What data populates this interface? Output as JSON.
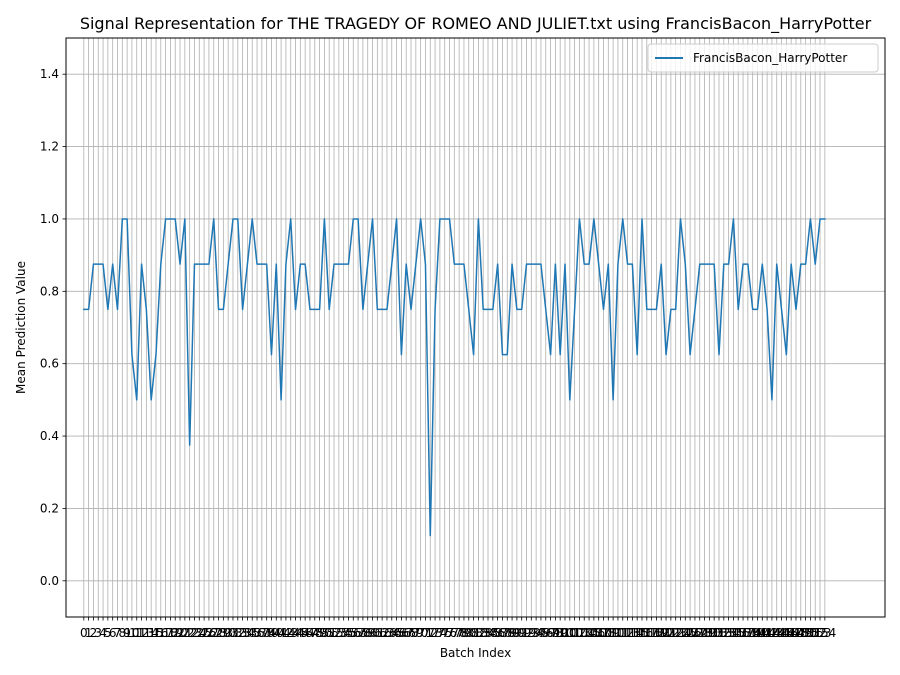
{
  "chart_data": {
    "type": "line",
    "title": "Signal Representation for THE TRAGEDY OF ROMEO AND JULIET.txt using FrancisBacon_HarryPotter",
    "xlabel": "Batch Index",
    "ylabel": "Mean Prediction Value",
    "xlim": [
      -3.7,
      166.5
    ],
    "ylim": [
      -0.1,
      1.5
    ],
    "yticks": [
      0.0,
      0.2,
      0.4,
      0.6,
      0.8,
      1.0,
      1.2,
      1.4
    ],
    "grid": true,
    "legend_position": "upper right",
    "series": [
      {
        "name": "FrancisBacon_HarryPotter",
        "color": "#1f77b4",
        "values": [
          0.75,
          0.75,
          0.875,
          0.875,
          0.875,
          0.75,
          0.875,
          0.75,
          1.0,
          1.0,
          0.625,
          0.5,
          0.875,
          0.75,
          0.5,
          0.625,
          0.875,
          1.0,
          1.0,
          1.0,
          0.875,
          1.0,
          0.375,
          0.875,
          0.875,
          0.875,
          0.875,
          1.0,
          0.75,
          0.75,
          0.875,
          1.0,
          1.0,
          0.75,
          0.875,
          1.0,
          0.875,
          0.875,
          0.875,
          0.625,
          0.875,
          0.5,
          0.875,
          1.0,
          0.75,
          0.875,
          0.875,
          0.75,
          0.75,
          0.75,
          1.0,
          0.75,
          0.875,
          0.875,
          0.875,
          0.875,
          1.0,
          1.0,
          0.75,
          0.875,
          1.0,
          0.75,
          0.75,
          0.75,
          0.875,
          1.0,
          0.625,
          0.875,
          0.75,
          0.875,
          1.0,
          0.875,
          0.125,
          0.75,
          1.0,
          1.0,
          1.0,
          0.875,
          0.875,
          0.875,
          0.75,
          0.625,
          1.0,
          0.75,
          0.75,
          0.75,
          0.875,
          0.625,
          0.625,
          0.875,
          0.75,
          0.75,
          0.875,
          0.875,
          0.875,
          0.875,
          0.75,
          0.625,
          0.875,
          0.625,
          0.875,
          0.5,
          0.75,
          1.0,
          0.875,
          0.875,
          1.0,
          0.875,
          0.75,
          0.875,
          0.5,
          0.875,
          1.0,
          0.875,
          0.875,
          0.625,
          1.0,
          0.75,
          0.75,
          0.75,
          0.875,
          0.625,
          0.75,
          0.75,
          1.0,
          0.875,
          0.625,
          0.75,
          0.875,
          0.875,
          0.875,
          0.875,
          0.625,
          0.875,
          0.875,
          1.0,
          0.75,
          0.875,
          0.875,
          0.75,
          0.75,
          0.875,
          0.75,
          0.5,
          0.875,
          0.75,
          0.625,
          0.875,
          0.75,
          0.875,
          0.875,
          1.0,
          0.875,
          1.0,
          1.0
        ]
      }
    ]
  }
}
